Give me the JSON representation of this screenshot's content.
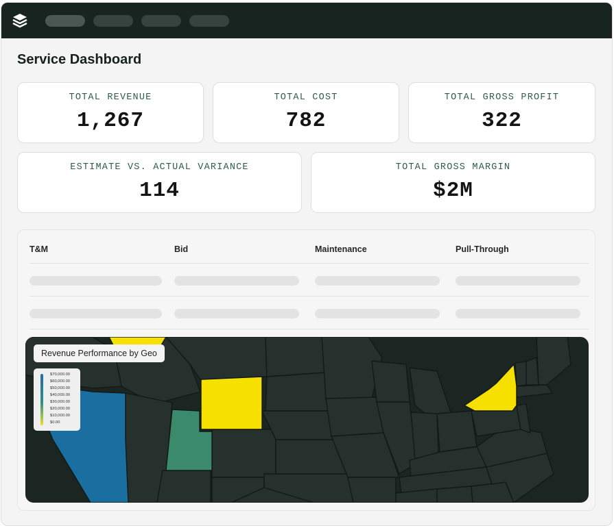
{
  "header": {
    "nav_items": [
      "",
      "",
      "",
      ""
    ],
    "logo_icon": "stacked-layers-icon"
  },
  "page": {
    "title": "Service Dashboard"
  },
  "kpis": [
    {
      "label": "TOTAL REVENUE",
      "value": "1,267"
    },
    {
      "label": "TOTAL COST",
      "value": "782"
    },
    {
      "label": "TOTAL GROSS PROFIT",
      "value": "322"
    },
    {
      "label": "ESTIMATE VS. ACTUAL VARIANCE",
      "value": "114"
    },
    {
      "label": "TOTAL GROSS MARGIN",
      "value": "$2M"
    }
  ],
  "table": {
    "columns": [
      "T&M",
      "Bid",
      "Maintenance",
      "Pull-Through"
    ]
  },
  "map": {
    "title": "Revenue Performance by Geo",
    "legend": [
      "$70,000.00",
      "$60,000.00",
      "$50,000.00",
      "$40,000.00",
      "$30,000.00",
      "$20,000.00",
      "$10,000.00",
      "$0.00"
    ],
    "colors": {
      "background": "#1b2522",
      "state_base": "#26312d",
      "state_border": "#121916",
      "high": "#1a6fa0",
      "mid": "#3b8a6e",
      "low": "#f5e000"
    },
    "highlighted_states": [
      {
        "state": "California",
        "level": "high"
      },
      {
        "state": "Utah",
        "level": "mid"
      },
      {
        "state": "Wyoming",
        "level": "low"
      },
      {
        "state": "New York",
        "level": "low"
      },
      {
        "state": "Montana (partial)",
        "level": "low"
      }
    ]
  }
}
